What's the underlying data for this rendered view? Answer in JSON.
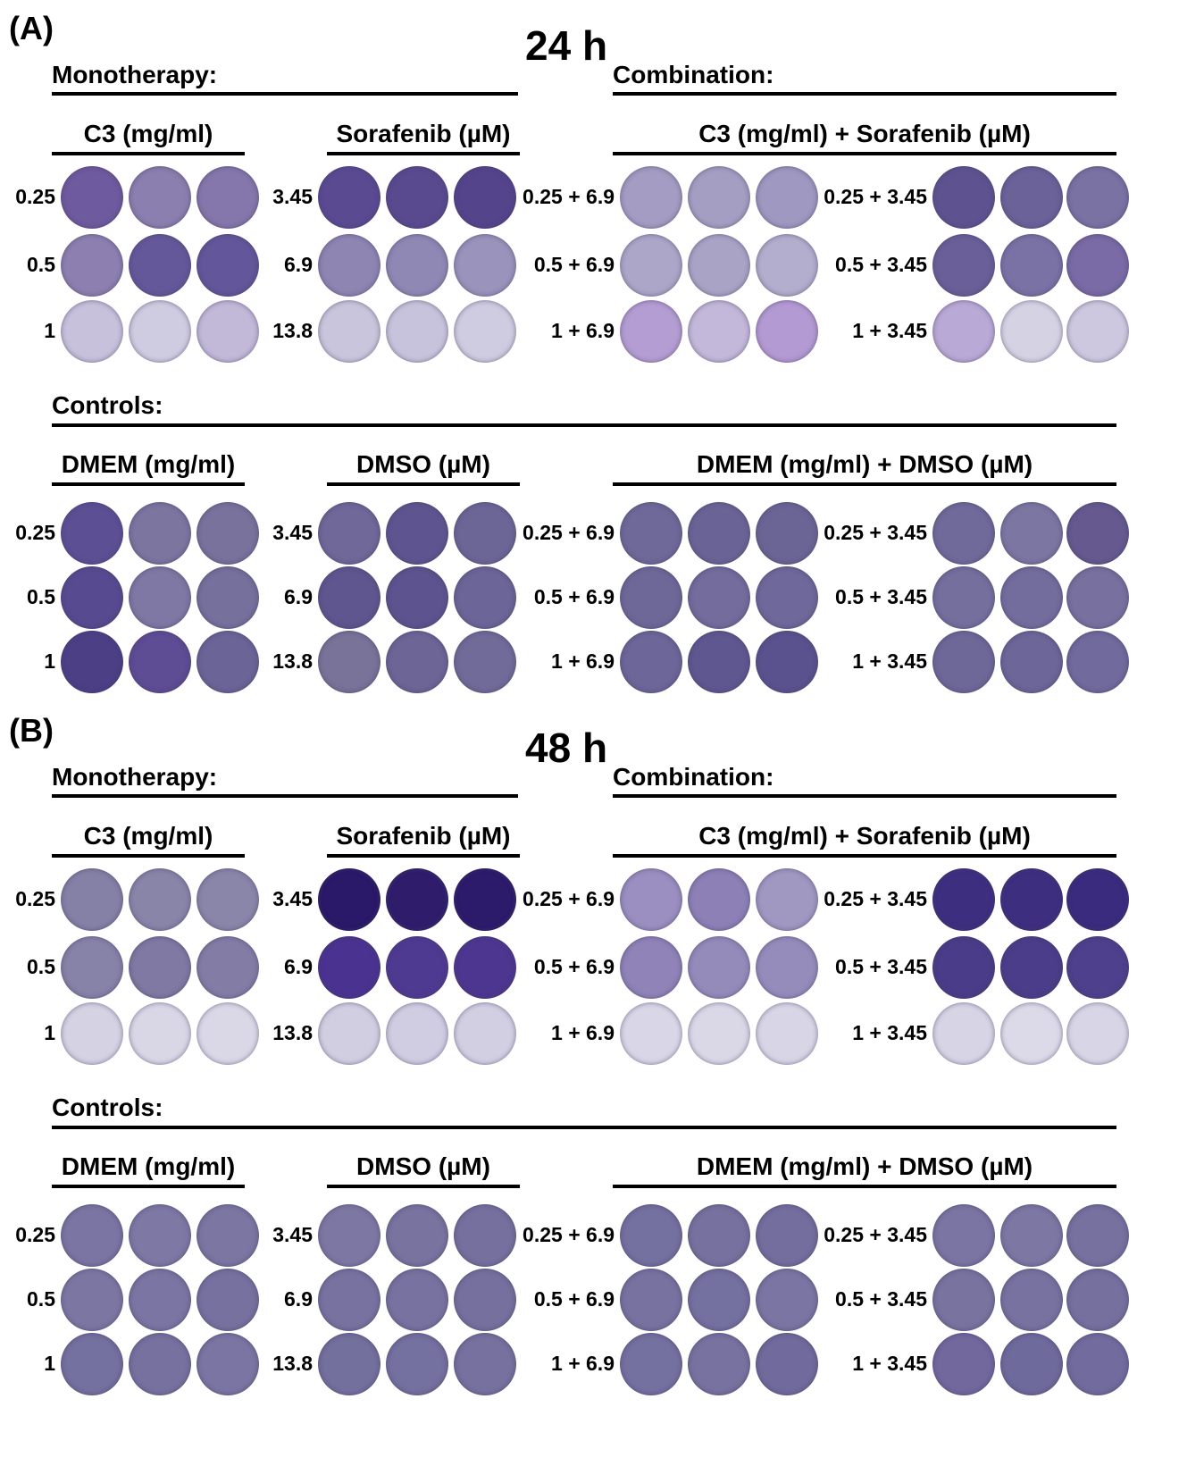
{
  "panels": [
    {
      "label": "(A)",
      "time": "24 h",
      "monotherapy_title": "Monotherapy:",
      "combination_title": "Combination:",
      "controls_title": "Controls:",
      "treatment_groups": [
        "C3 (mg/ml)",
        "Sorafenib (µM)",
        "C3 (mg/ml) + Sorafenib (µM)"
      ],
      "control_groups": [
        "DMEM (mg/ml)",
        "DMSO (µM)",
        "DMEM (mg/ml) + DMSO (µM)"
      ],
      "treatment_rows": [
        {
          "c3": "0.25",
          "sorafenib": "3.45",
          "combo1": "0.25 + 6.9",
          "combo2": "0.25 + 3.45"
        },
        {
          "c3": "0.5",
          "sorafenib": "6.9",
          "combo1": "0.5 + 6.9",
          "combo2": "0.5 + 3.45"
        },
        {
          "c3": "1",
          "sorafenib": "13.8",
          "combo1": "1 + 6.9",
          "combo2": "1 + 3.45"
        }
      ],
      "control_rows": [
        {
          "c3": "0.25",
          "sorafenib": "3.45",
          "combo1": "0.25 + 6.9",
          "combo2": "0.25 + 3.45"
        },
        {
          "c3": "0.5",
          "sorafenib": "6.9",
          "combo1": "0.5 + 6.9",
          "combo2": "0.5 + 3.45"
        },
        {
          "c3": "1",
          "sorafenib": "13.8",
          "combo1": "1 + 6.9",
          "combo2": "1 + 3.45"
        }
      ],
      "well_colors": {
        "treatment": [
          [
            "#6e5a9e",
            "#8a7fae",
            "#8577ab",
            "#5a4a92",
            "#594a90",
            "#54448c",
            "#a49cc2",
            "#a59ec3",
            "#9f98c0",
            "#5e5390",
            "#6a6298",
            "#7a72a3"
          ],
          [
            "#8d80b0",
            "#65589a",
            "#63569a",
            "#8e85b3",
            "#9088b4",
            "#9a93bc",
            "#aca6c8",
            "#a9a3c6",
            "#b3aecd",
            "#6a5f98",
            "#7a72a4",
            "#7a6aa5"
          ],
          [
            "#c7c1dc",
            "#cfcbe1",
            "#c2b9d9",
            "#c9c5dc",
            "#c8c3dc",
            "#cfcbe0",
            "#b49dd2",
            "#c3b8da",
            "#b49ad3",
            "#b9a9d6",
            "#d5d2e4",
            "#cdc8df"
          ]
        ],
        "control": [
          [
            "#5d4f94",
            "#7c75a0",
            "#78729d",
            "#6f6898",
            "#5e5590",
            "#6c6697",
            "#6e6998",
            "#6a6496",
            "#6b6596",
            "#706a9a",
            "#7c76a2",
            "#65598f"
          ],
          [
            "#584a90",
            "#7f78a4",
            "#76709d",
            "#5f568f",
            "#5d548f",
            "#6c6598",
            "#6e6899",
            "#736c9c",
            "#6f689a",
            "#756f9e",
            "#736d9d",
            "#78719f"
          ],
          [
            "#4c3f86",
            "#5e4c94",
            "#6b6497",
            "#797399",
            "#6c6596",
            "#716b99",
            "#6c6699",
            "#5f5790",
            "#5a528e",
            "#6e6899",
            "#6c6699",
            "#716a9c"
          ]
        ]
      }
    },
    {
      "label": "(B)",
      "time": "48 h",
      "monotherapy_title": "Monotherapy:",
      "combination_title": "Combination:",
      "controls_title": "Controls:",
      "treatment_groups": [
        "C3 (mg/ml)",
        "Sorafenib (µM)",
        "C3 (mg/ml) + Sorafenib (µM)"
      ],
      "control_groups": [
        "DMEM (mg/ml)",
        "DMSO (µM)",
        "DMEM (mg/ml) + DMSO (µM)"
      ],
      "treatment_rows": [
        {
          "c3": "0.25",
          "sorafenib": "3.45",
          "combo1": "0.25 + 6.9",
          "combo2": "0.25 + 3.45"
        },
        {
          "c3": "0.5",
          "sorafenib": "6.9",
          "combo1": "0.5 + 6.9",
          "combo2": "0.5 + 3.45"
        },
        {
          "c3": "1",
          "sorafenib": "13.8",
          "combo1": "1 + 6.9",
          "combo2": "1 + 3.45"
        }
      ],
      "control_rows": [
        {
          "c3": "0.25",
          "sorafenib": "3.45",
          "combo1": "0.25 + 6.9",
          "combo2": "0.25 + 3.45"
        },
        {
          "c3": "0.5",
          "sorafenib": "6.9",
          "combo1": "0.5 + 6.9",
          "combo2": "0.5 + 3.45"
        },
        {
          "c3": "1",
          "sorafenib": "13.8",
          "combo1": "1 + 6.9",
          "combo2": "1 + 3.45"
        }
      ],
      "well_colors": {
        "treatment": [
          [
            "#8580a6",
            "#8985a8",
            "#8a86aa",
            "#2a1868",
            "#2f1d6c",
            "#2c1a6a",
            "#9a8fc0",
            "#8c80b6",
            "#a198c2",
            "#3e2e80",
            "#3e2e80",
            "#3b2b7e"
          ],
          [
            "#8782a8",
            "#7f79a3",
            "#837da6",
            "#4a3390",
            "#4f3a92",
            "#4d3690",
            "#8f83b8",
            "#958bbb",
            "#968cbc",
            "#4a3c88",
            "#4b3d89",
            "#4e408c"
          ],
          [
            "#d5d2e4",
            "#d9d6e6",
            "#dad8e7",
            "#d2cee2",
            "#d0cce2",
            "#d3cfe3",
            "#d9d6e7",
            "#dad7e7",
            "#d8d5e6",
            "#d7d4e6",
            "#dcd9e8",
            "#d8d5e6"
          ]
        ],
        "control": [
          [
            "#7a75a2",
            "#7d78a4",
            "#7b76a2",
            "#7d78a3",
            "#78739f",
            "#75709e",
            "#7470a0",
            "#76719f",
            "#736e9e",
            "#7a75a2",
            "#7c77a3",
            "#76719f"
          ],
          [
            "#7c77a2",
            "#7a75a2",
            "#76719f",
            "#77729f",
            "#77729f",
            "#75709e",
            "#77729f",
            "#74709f",
            "#7a75a2",
            "#78739f",
            "#77729f",
            "#75709e"
          ],
          [
            "#74709f",
            "#76719f",
            "#7a75a2",
            "#73709e",
            "#74709f",
            "#76719f",
            "#7470a0",
            "#77729f",
            "#706b9c",
            "#72689e",
            "#6e6a9c",
            "#716c9d"
          ]
        ]
      }
    }
  ]
}
